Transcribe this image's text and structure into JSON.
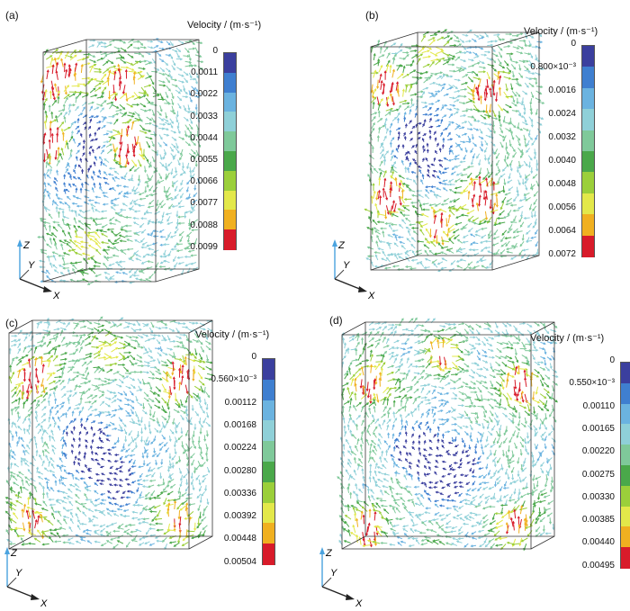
{
  "chart_data": [
    {
      "type": "heatmap",
      "label": "(a)",
      "legend_title": "Velocity / (m·s⁻¹)",
      "ticks": [
        "0",
        "0.0011",
        "0.0022",
        "0.0033",
        "0.0044",
        "0.0055",
        "0.0066",
        "0.0077",
        "0.0088",
        "0.0099"
      ],
      "range": [
        0,
        0.0099
      ],
      "axes": [
        "Z",
        "Y",
        "X"
      ]
    },
    {
      "type": "heatmap",
      "label": "(b)",
      "legend_title": "Velocity / (m·s⁻¹)",
      "ticks": [
        "0",
        "0.800×10⁻³",
        "0.0016",
        "0.0024",
        "0.0032",
        "0.0040",
        "0.0048",
        "0.0056",
        "0.0064",
        "0.0072"
      ],
      "range": [
        0,
        0.0072
      ],
      "axes": [
        "Z",
        "Y",
        "X"
      ]
    },
    {
      "type": "heatmap",
      "label": "(c)",
      "legend_title": "Velocity / (m·s⁻¹)",
      "ticks": [
        "0",
        "0.560×10⁻³",
        "0.00112",
        "0.00168",
        "0.00224",
        "0.00280",
        "0.00336",
        "0.00392",
        "0.00448",
        "0.00504"
      ],
      "range": [
        0,
        0.00504
      ],
      "axes": [
        "Z",
        "Y",
        "X"
      ]
    },
    {
      "type": "heatmap",
      "label": "(d)",
      "legend_title": "Velocity / (m·s⁻¹)",
      "ticks": [
        "0",
        "0.550×10⁻³",
        "0.00110",
        "0.00165",
        "0.00220",
        "0.00275",
        "0.00330",
        "0.00385",
        "0.00440",
        "0.00495"
      ],
      "range": [
        0,
        0.00495
      ],
      "axes": [
        "Z",
        "Y",
        "X"
      ]
    }
  ],
  "colors": {
    "scale": [
      "#3b3f9e",
      "#3f7fd0",
      "#6bb3e0",
      "#8fd0d8",
      "#7fc99a",
      "#4aa84a",
      "#9bcf3a",
      "#e3e84a",
      "#f0b020",
      "#d81b2a"
    ],
    "frame": "#333333",
    "axis_triad": "#4aa3df"
  }
}
